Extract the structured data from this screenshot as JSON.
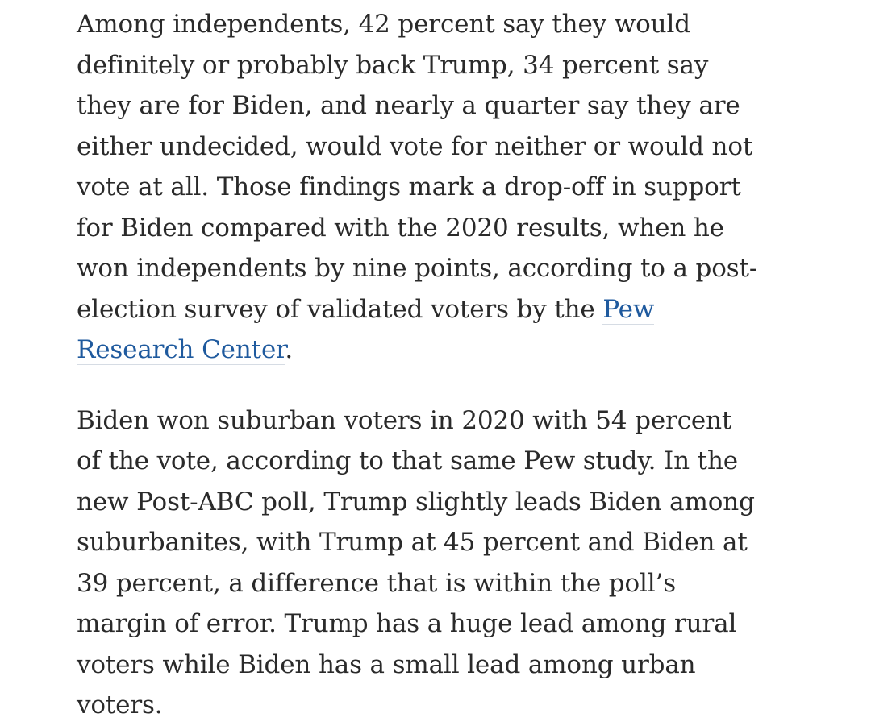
{
  "article": {
    "paragraph_1": {
      "text_before_link": "Among independents, 42 percent say they would definitely or probably back Trump, 34 percent say they are for Biden, and nearly a quarter say they are either undecided, would vote for neither or would not vote at all. Those findings mark a drop-off in support for Biden compared with the 2020 results, when he won independents by nine points, according to a post-election survey of validated voters by the ",
      "link_text": "Pew Research Center",
      "text_after_link": "."
    },
    "paragraph_2": {
      "text": "Biden won suburban voters in 2020 with 54 percent of the vote, according to that same Pew study. In the new Post-ABC poll, Trump slightly leads Biden among suburbanites, with Trump at 45 percent and Biden at 39 percent, a difference that is within the poll’s margin of error. Trump has a huge lead among rural voters while Biden has a small lead among urban voters."
    },
    "colors": {
      "text": "#2a2a2a",
      "link": "#1f5a9e",
      "background": "#ffffff"
    }
  }
}
